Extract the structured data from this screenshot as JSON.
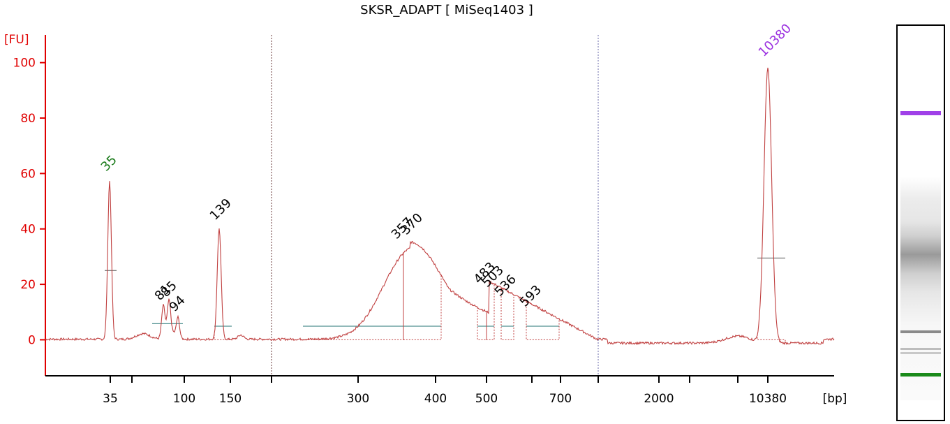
{
  "title": "SKSR_ADAPT  [ MiSeq1403 ]",
  "chart_data": {
    "type": "line",
    "title": "SKSR_ADAPT  [ MiSeq1403 ]",
    "ylabel": "[FU]",
    "xlabel": "[bp]",
    "ylim": [
      -13,
      110
    ],
    "yticks": [
      0,
      20,
      40,
      60,
      80,
      100
    ],
    "xtick_labels": [
      "35",
      "100",
      "150",
      "300",
      "400",
      "500",
      "700",
      "2000",
      "10380"
    ],
    "grid": false,
    "colors": {
      "trace": "#c04040",
      "axis": "#e00000",
      "marker_lower": "#1a7a1a",
      "marker_upper": "#9b30e0",
      "baseline": "#4f8f8f"
    },
    "peak_labels": [
      {
        "label": "35",
        "fu": 58,
        "color": "#1a7a1a"
      },
      {
        "label": "81",
        "fu": 13,
        "color": "#000000"
      },
      {
        "label": "85",
        "fu": 13,
        "color": "#000000"
      },
      {
        "label": "94",
        "fu": 8,
        "color": "#000000"
      },
      {
        "label": "139",
        "fu": 41,
        "color": "#000000"
      },
      {
        "label": "357",
        "fu": 35,
        "color": "#000000"
      },
      {
        "label": "370",
        "fu": 36,
        "color": "#000000"
      },
      {
        "label": "483",
        "fu": 18,
        "color": "#000000"
      },
      {
        "label": "503",
        "fu": 16,
        "color": "#000000"
      },
      {
        "label": "536",
        "fu": 14,
        "color": "#000000"
      },
      {
        "label": "593",
        "fu": 11,
        "color": "#000000"
      },
      {
        "label": "10380",
        "fu": 99,
        "color": "#9b30e0"
      }
    ]
  }
}
